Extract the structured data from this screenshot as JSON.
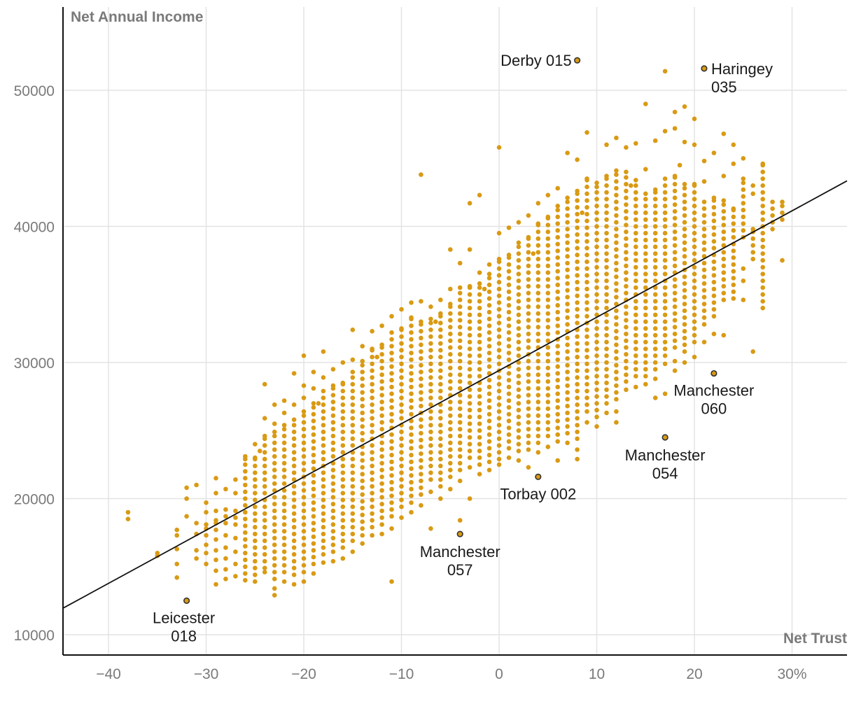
{
  "chart_data": {
    "type": "scatter",
    "title": "",
    "xlabel": "Net Trust",
    "ylabel": "Net Annual Income",
    "xlim": [
      -45,
      35.5
    ],
    "ylim": [
      9000,
      55500
    ],
    "x_ticks": [
      -40,
      -30,
      -20,
      -10,
      0,
      10,
      20,
      30
    ],
    "x_tick_labels": [
      "−40",
      "−30",
      "−20",
      "−10",
      "0",
      "10",
      "20",
      "30%"
    ],
    "y_ticks": [
      10000,
      20000,
      30000,
      40000,
      50000
    ],
    "y_tick_labels": [
      "10000",
      "20000",
      "30000",
      "40000",
      "50000"
    ],
    "grid": true,
    "dot_color": "#d99a14",
    "trend_line": {
      "slope": 390,
      "intercept": 29500
    },
    "columns": [
      {
        "x": -38,
        "y": [
          18500,
          19000
        ]
      },
      {
        "x": -35,
        "y": [
          15800,
          16000
        ]
      },
      {
        "x": -33,
        "y": [
          14200,
          15200,
          16300,
          17300,
          17700
        ]
      },
      {
        "x": -32,
        "y": [
          18700,
          20000,
          20800
        ]
      },
      {
        "x": -31,
        "y": [
          15600,
          16200,
          17400,
          18200,
          21000
        ]
      },
      {
        "x": -30,
        "y": [
          15200,
          16000,
          16600,
          17300,
          18100,
          19000,
          19700
        ]
      },
      {
        "x": -29,
        "y": [
          13700,
          14700,
          15500,
          16200,
          17000,
          17700,
          18400,
          19100,
          20400,
          21500
        ]
      },
      {
        "x": -28,
        "y": [
          14100,
          14800,
          15600,
          16400,
          17300,
          18200,
          19200,
          20700
        ]
      },
      {
        "x": -27,
        "y": [
          14300,
          15200,
          16100,
          17100,
          18100,
          19100,
          20400,
          21400
        ]
      },
      {
        "x": -26,
        "y": [
          14000,
          22900,
          23100
        ]
      },
      {
        "x": -25,
        "y": [
          13900,
          14400,
          23000,
          24000
        ]
      },
      {
        "x": -24,
        "y": [
          14600,
          14900,
          24600,
          25900,
          28400
        ]
      },
      {
        "x": -23,
        "y": [
          12900,
          13400,
          14100,
          24900,
          25500,
          26900
        ]
      },
      {
        "x": -22,
        "y": [
          13900,
          14600,
          25400,
          26300,
          27200
        ]
      },
      {
        "x": -21,
        "y": [
          13700,
          14400,
          25800,
          26900,
          29200
        ]
      },
      {
        "x": -20,
        "y": [
          13900,
          14600,
          26400,
          27400,
          28300,
          30500
        ]
      },
      {
        "x": -19,
        "y": [
          14500,
          15200,
          27000,
          28100,
          29300
        ]
      },
      {
        "x": -18,
        "y": [
          15300,
          15900,
          27900,
          28900,
          30800
        ]
      },
      {
        "x": -17,
        "y": [
          15400,
          16100,
          28300,
          29500
        ]
      },
      {
        "x": -16,
        "y": [
          15600,
          16400,
          28500,
          30000
        ]
      },
      {
        "x": -15,
        "y": [
          16100,
          16900,
          29300,
          30200,
          32400
        ]
      },
      {
        "x": -14,
        "y": [
          16700,
          17300,
          30100,
          31200
        ]
      },
      {
        "x": -13,
        "y": [
          17300,
          17900,
          31000,
          32300
        ]
      },
      {
        "x": -12,
        "y": [
          17400,
          18100,
          31300,
          32700
        ]
      },
      {
        "x": -11,
        "y": [
          13900,
          17800,
          18700,
          32200,
          33400
        ]
      },
      {
        "x": -10,
        "y": [
          18600,
          19400,
          32500,
          33900
        ]
      },
      {
        "x": -9,
        "y": [
          19000,
          19700,
          33300,
          34400
        ]
      },
      {
        "x": -8,
        "y": [
          19500,
          20300,
          33000,
          34500,
          43800
        ]
      },
      {
        "x": -7,
        "y": [
          17800,
          20500,
          21400,
          33200,
          34100
        ]
      },
      {
        "x": -6,
        "y": [
          20000,
          20900,
          33600,
          34600
        ]
      },
      {
        "x": -5,
        "y": [
          20700,
          21600,
          34300,
          35400,
          38300
        ]
      },
      {
        "x": -4,
        "y": [
          18400,
          21300,
          22100,
          35500,
          37300
        ]
      },
      {
        "x": -3,
        "y": [
          20000,
          22300,
          23000,
          35600,
          38300,
          41700
        ]
      },
      {
        "x": -2,
        "y": [
          21800,
          22500,
          35800,
          36600,
          42300
        ]
      },
      {
        "x": -1,
        "y": [
          22100,
          22700,
          36500,
          37200
        ]
      },
      {
        "x": 0,
        "y": [
          22500,
          22900,
          37600,
          39500,
          45800
        ]
      },
      {
        "x": 1,
        "y": [
          23000,
          23700,
          37900,
          39900
        ]
      },
      {
        "x": 2,
        "y": [
          22800,
          23500,
          38800,
          40300
        ]
      },
      {
        "x": 3,
        "y": [
          22300,
          23600,
          39200,
          40800
        ]
      },
      {
        "x": 4,
        "y": [
          23400,
          24100,
          40200,
          41700
        ]
      },
      {
        "x": 5,
        "y": [
          23800,
          24600,
          40700,
          42300
        ]
      },
      {
        "x": 6,
        "y": [
          22800,
          24200,
          41500,
          42800
        ]
      },
      {
        "x": 7,
        "y": [
          24100,
          24800,
          42100,
          45400
        ]
      },
      {
        "x": 8,
        "y": [
          22900,
          23600,
          24400,
          42600,
          44900
        ]
      },
      {
        "x": 9,
        "y": [
          25600,
          26400,
          43500,
          46900
        ]
      },
      {
        "x": 10,
        "y": [
          25300,
          26000,
          42900,
          43200
        ]
      },
      {
        "x": 11,
        "y": [
          26300,
          27000,
          43700,
          46000
        ]
      },
      {
        "x": 12,
        "y": [
          25600,
          26400,
          27300,
          44100,
          46500
        ]
      },
      {
        "x": 13,
        "y": [
          28000,
          28600,
          44000,
          45800
        ]
      },
      {
        "x": 14,
        "y": [
          28200,
          29000,
          43400,
          46100
        ]
      },
      {
        "x": 15,
        "y": [
          28400,
          29000,
          42400,
          44200,
          49000
        ]
      },
      {
        "x": 16,
        "y": [
          27400,
          28800,
          29500,
          42700,
          46300
        ]
      },
      {
        "x": 17,
        "y": [
          27700,
          29900,
          30500,
          43500,
          47000,
          51400
        ]
      },
      {
        "x": 18,
        "y": [
          29400,
          30100,
          31100,
          43700,
          47200,
          48400
        ]
      },
      {
        "x": 19,
        "y": [
          30000,
          30800,
          43100,
          46200,
          48800
        ]
      },
      {
        "x": 20,
        "y": [
          30400,
          31500,
          43100,
          46000,
          47900
        ]
      },
      {
        "x": 21,
        "y": [
          31500,
          32800,
          41800,
          43300,
          44800
        ]
      },
      {
        "x": 22,
        "y": [
          32100,
          33400,
          42100,
          45400
        ]
      },
      {
        "x": 23,
        "y": [
          32000,
          34600,
          41900,
          43700,
          46800
        ]
      },
      {
        "x": 24,
        "y": [
          34700,
          35200,
          41300,
          44600,
          46000
        ]
      },
      {
        "x": 25,
        "y": [
          34600,
          36000,
          36900,
          39200,
          43500,
          45000
        ]
      },
      {
        "x": 26,
        "y": [
          30800,
          37600,
          39800,
          42400,
          43000
        ]
      },
      {
        "x": 27,
        "y": [
          34000,
          44600
        ]
      },
      {
        "x": 28,
        "y": [
          39800,
          41800
        ]
      },
      {
        "x": 29,
        "y": [
          37500,
          40500,
          41800
        ]
      }
    ],
    "extra_points": [
      {
        "x": -24.5,
        "y": 23500
      },
      {
        "x": -18.5,
        "y": 27000
      },
      {
        "x": -12.5,
        "y": 30400
      },
      {
        "x": -6.5,
        "y": 33000
      },
      {
        "x": -1.5,
        "y": 35400
      },
      {
        "x": 3.5,
        "y": 38000
      },
      {
        "x": 8.5,
        "y": 41000
      },
      {
        "x": 13.5,
        "y": 43000
      },
      {
        "x": 18.5,
        "y": 44500
      }
    ],
    "highlighted": [
      {
        "name": "Derby 015",
        "x": 8,
        "y": 52200
      },
      {
        "name": "Haringey 035",
        "x": 21,
        "y": 51600
      },
      {
        "name": "Manchester 060",
        "x": 22,
        "y": 29200
      },
      {
        "name": "Manchester 054",
        "x": 17,
        "y": 24500
      },
      {
        "name": "Torbay 002",
        "x": 4,
        "y": 21600
      },
      {
        "name": "Manchester 057",
        "x": -4,
        "y": 17400
      },
      {
        "name": "Leicester 018",
        "x": -32,
        "y": 12500
      }
    ],
    "labels": [
      {
        "point": "Derby 015",
        "lines": [
          "Derby 015"
        ],
        "anchor": "end",
        "dx": -8,
        "dy": 8
      },
      {
        "point": "Haringey 035",
        "lines": [
          "Haringey",
          "035"
        ],
        "anchor": "start",
        "dx": 10,
        "dy": 8
      },
      {
        "point": "Manchester 060",
        "lines": [
          "Manchester",
          "060"
        ],
        "anchor": "middle",
        "dx": 0,
        "dy": 32
      },
      {
        "point": "Manchester 054",
        "lines": [
          "Manchester",
          "054"
        ],
        "anchor": "middle",
        "dx": 0,
        "dy": 33
      },
      {
        "point": "Torbay 002",
        "lines": [
          "Torbay 002"
        ],
        "anchor": "middle",
        "dx": 0,
        "dy": 32
      },
      {
        "point": "Manchester 057",
        "lines": [
          "Manchester",
          "057"
        ],
        "anchor": "middle",
        "dx": 0,
        "dy": 33
      },
      {
        "point": "Leicester 018",
        "lines": [
          "Leicester",
          "018"
        ],
        "anchor": "middle",
        "dx": -4,
        "dy": 32
      }
    ]
  }
}
